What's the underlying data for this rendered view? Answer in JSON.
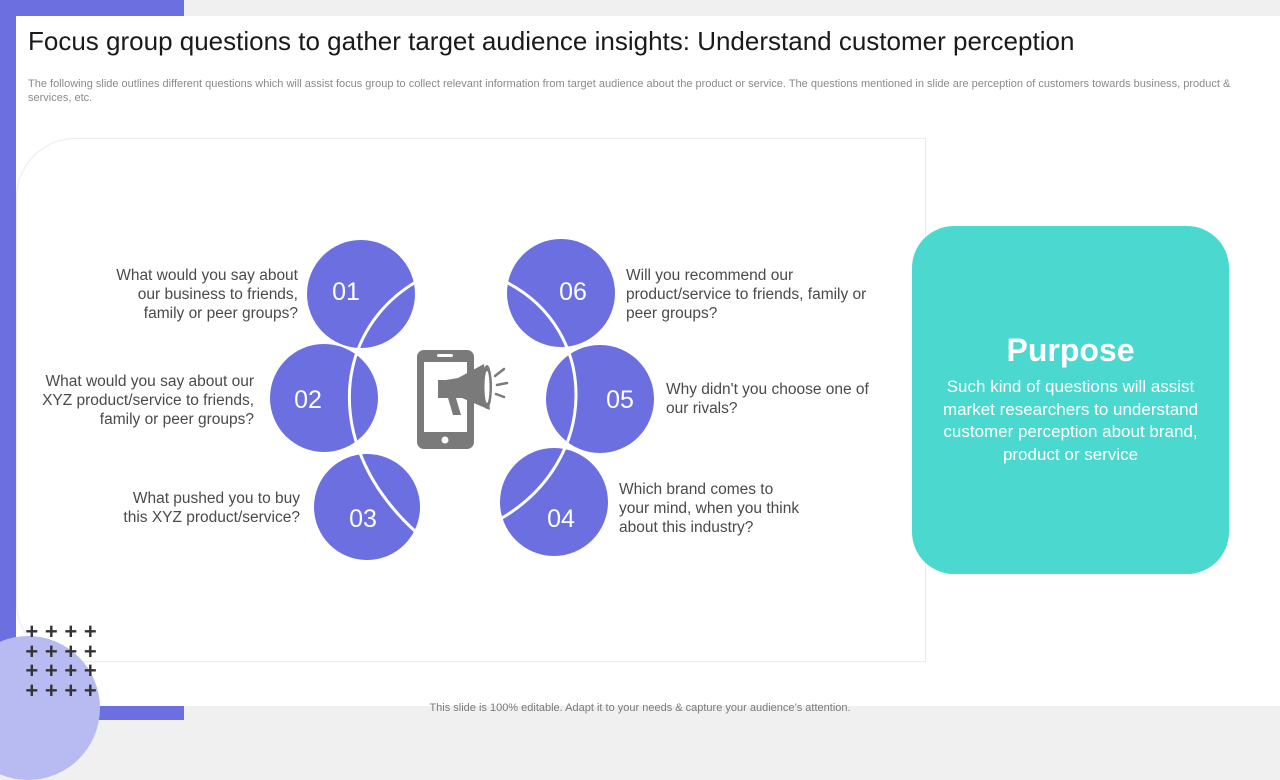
{
  "slide": {
    "title": "Focus group questions to gather target audience insights: Understand customer perception",
    "subtitle": "The following slide outlines different questions which will assist focus group to collect relevant information from target audience about the product or service. The questions mentioned in slide are perception of customers towards business, product & services, etc.",
    "footer": "This slide is 100% editable. Adapt it to your needs & capture your audience’s attention."
  },
  "colors": {
    "accent": "#6b6fe0",
    "teal": "#4ad8cf",
    "icon_gray": "#7a7a7a"
  },
  "diagram": {
    "center_icon": "phone-megaphone-icon",
    "items": [
      {
        "number": "01",
        "question": "What would you say about our business to friends, family or peer groups?"
      },
      {
        "number": "02",
        "question": "What would you say about our XYZ product/service to friends, family or peer groups?"
      },
      {
        "number": "03",
        "question": "What pushed you to buy this XYZ product/service?"
      },
      {
        "number": "04",
        "question": "Which brand comes to your mind, when you think about this industry?"
      },
      {
        "number": "05",
        "question": "Why didn't you choose one of our rivals?"
      },
      {
        "number": "06",
        "question": "Will you recommend our product/service to friends, family or peer groups?"
      }
    ]
  },
  "purpose": {
    "title": "Purpose",
    "text": "Such kind of questions will assist market researchers to understand customer perception about brand, product or service"
  },
  "decoration": {
    "plus_glyph": "+"
  }
}
